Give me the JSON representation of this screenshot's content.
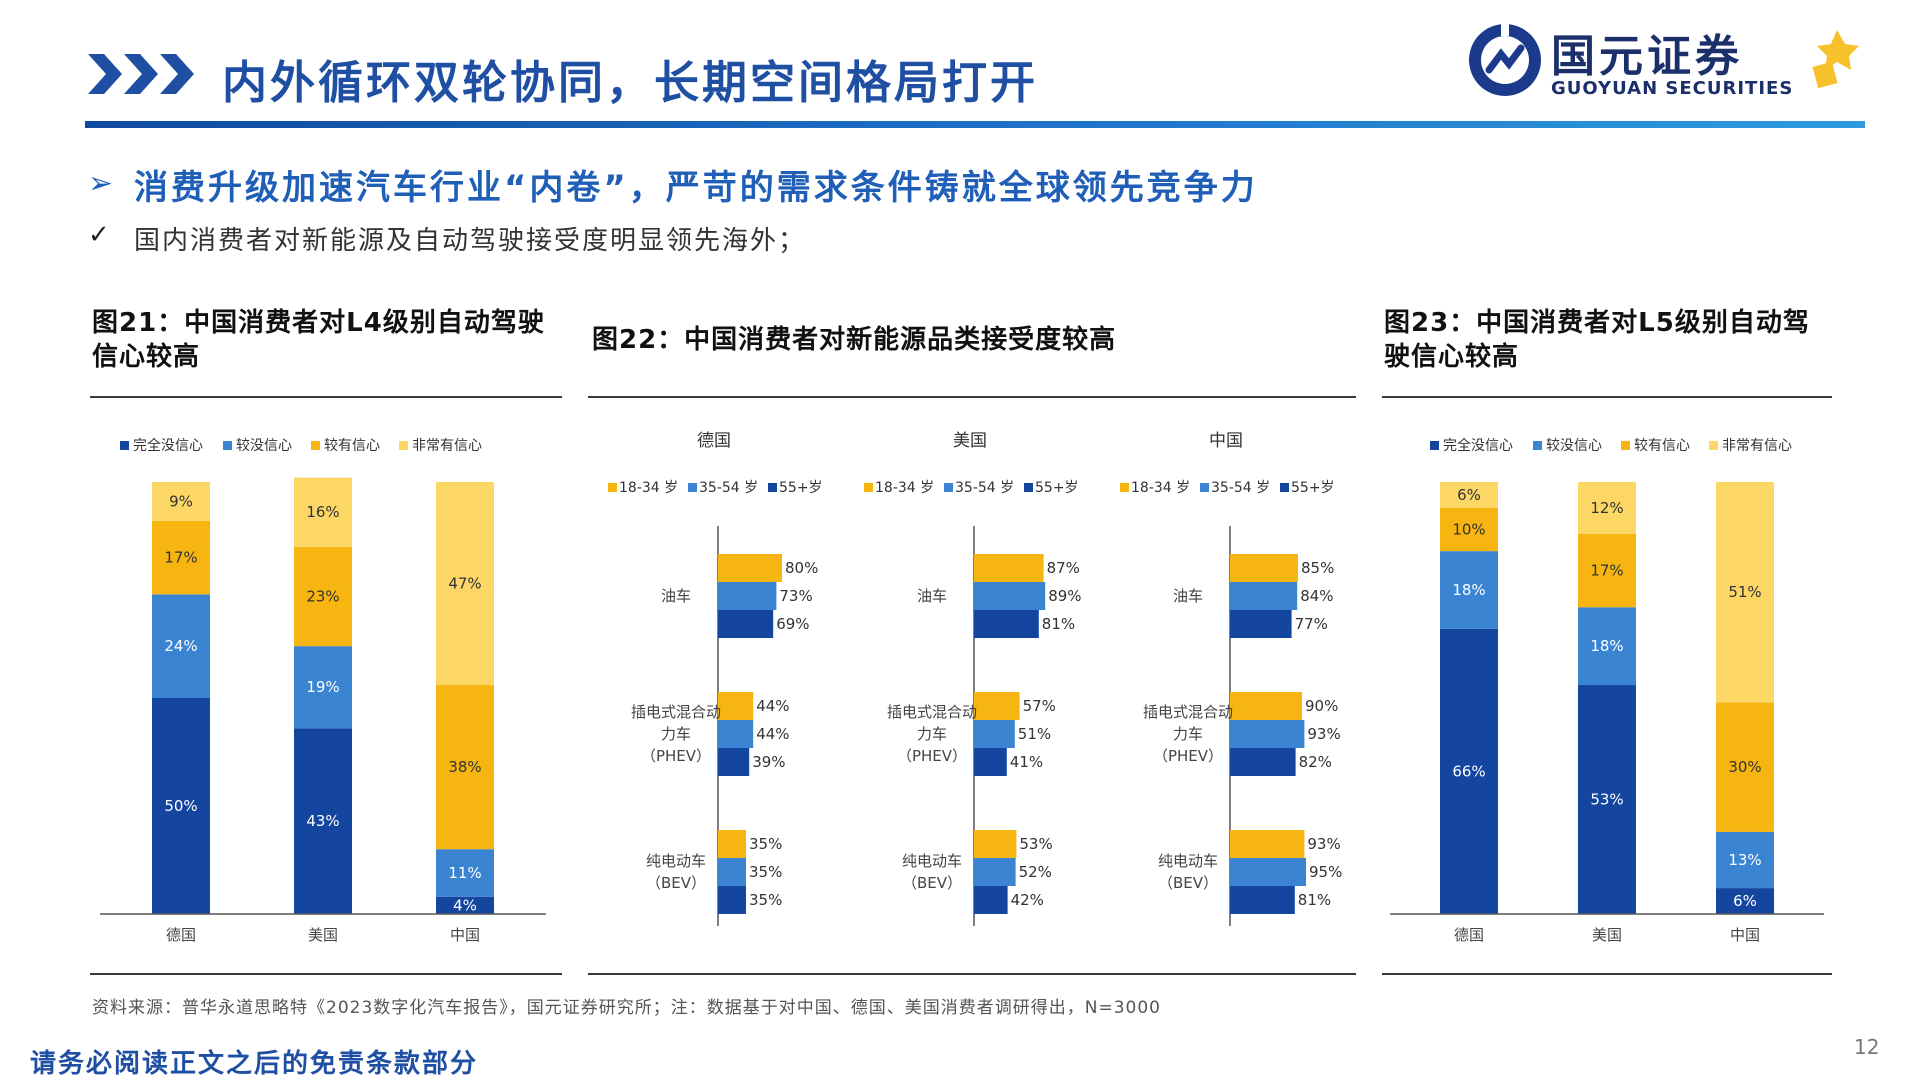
{
  "header": {
    "title": "内外循环双轮协同，长期空间格局打开",
    "logo_cn": "国元证券",
    "logo_en": "GUOYUAN SECURITIES",
    "brand_color": "#1f4fa3"
  },
  "subhead": {
    "marker": "➢",
    "text": "消费升级加速汽车行业“内卷”，严苛的需求条件铸就全球领先竞争力"
  },
  "bullet": {
    "marker": "✓",
    "text": "国内消费者对新能源及自动驾驶接受度明显领先海外；"
  },
  "figures": {
    "fig21_title_l1": "图21：中国消费者对L4级别自动驾驶",
    "fig21_title_l2": "信心较高",
    "fig22_title": "图22：中国消费者对新能源品类接受度较高",
    "fig23_title_l1": "图23：中国消费者对L5级别自动驾",
    "fig23_title_l2": "驶信心较高"
  },
  "source": "资料来源：普华永道思略特《2023数字化汽车报告》，国元证券研究所；注：数据基于对中国、德国、美国消费者调研得出，N=3000",
  "disclaimer": "请务必阅读正文之后的免责条款部分",
  "page_number": "12",
  "chart_data": [
    {
      "id": "fig21",
      "type": "bar",
      "stacked": true,
      "categories": [
        "德国",
        "美国",
        "中国"
      ],
      "ylim": [
        0,
        100
      ],
      "legend_placement": "top",
      "series": [
        {
          "name": "完全没信心",
          "color": "#1446a0",
          "values": [
            50,
            43,
            4
          ],
          "labels": [
            "50%",
            "43%",
            "4%"
          ]
        },
        {
          "name": "较没信心",
          "color": "#3a84d2",
          "values": [
            24,
            19,
            11
          ],
          "labels": [
            "24%",
            "19%",
            "11%"
          ]
        },
        {
          "name": "较有信心",
          "color": "#f6b511",
          "values": [
            17,
            23,
            38
          ],
          "labels": [
            "17%",
            "23%",
            "38%"
          ]
        },
        {
          "name": "非常有信心",
          "color": "#fdd766",
          "values": [
            9,
            16,
            47
          ],
          "labels": [
            "9%",
            "16%",
            "47%"
          ]
        }
      ]
    },
    {
      "id": "fig22",
      "type": "bar",
      "orientation": "horizontal",
      "panels": [
        {
          "country": "德国",
          "categories": [
            "油车",
            "插电式混合动力车（PHEV）",
            "纯电动车（BEV）"
          ],
          "category_lines": [
            [
              "油车"
            ],
            [
              "插电式混合动",
              "力车",
              "（PHEV）"
            ],
            [
              "纯电动车",
              "（BEV）"
            ]
          ],
          "series": [
            {
              "name": "18-34 岁",
              "color": "#f6b511",
              "values": [
                80,
                44,
                35
              ],
              "labels": [
                "80%",
                "44%",
                "35%"
              ]
            },
            {
              "name": "35-54 岁",
              "color": "#3a84d2",
              "values": [
                73,
                44,
                35
              ],
              "labels": [
                "73%",
                "44%",
                "35%"
              ]
            },
            {
              "name": "55+岁",
              "color": "#1446a0",
              "values": [
                69,
                39,
                35
              ],
              "labels": [
                "69%",
                "39%",
                "35%"
              ]
            }
          ]
        },
        {
          "country": "美国",
          "categories": [
            "油车",
            "插电式混合动力车（PHEV）",
            "纯电动车（BEV）"
          ],
          "category_lines": [
            [
              "油车"
            ],
            [
              "插电式混合动",
              "力车",
              "（PHEV）"
            ],
            [
              "纯电动车",
              "（BEV）"
            ]
          ],
          "series": [
            {
              "name": "18-34 岁",
              "color": "#f6b511",
              "values": [
                87,
                57,
                53
              ],
              "labels": [
                "87%",
                "57%",
                "53%"
              ]
            },
            {
              "name": "35-54 岁",
              "color": "#3a84d2",
              "values": [
                89,
                51,
                52
              ],
              "labels": [
                "89%",
                "51%",
                "52%"
              ]
            },
            {
              "name": "55+岁",
              "color": "#1446a0",
              "values": [
                81,
                41,
                42
              ],
              "labels": [
                "81%",
                "41%",
                "42%"
              ]
            }
          ]
        },
        {
          "country": "中国",
          "categories": [
            "油车",
            "插电式混合动力车（PHEV）",
            "纯电动车（BEV）"
          ],
          "category_lines": [
            [
              "油车"
            ],
            [
              "插电式混合动",
              "力车",
              "（PHEV）"
            ],
            [
              "纯电动车",
              "（BEV）"
            ]
          ],
          "series": [
            {
              "name": "18-34 岁",
              "color": "#f6b511",
              "values": [
                85,
                90,
                93
              ],
              "labels": [
                "85%",
                "90%",
                "93%"
              ]
            },
            {
              "name": "35-54 岁",
              "color": "#3a84d2",
              "values": [
                84,
                93,
                95
              ],
              "labels": [
                "84%",
                "93%",
                "95%"
              ]
            },
            {
              "name": "55+岁",
              "color": "#1446a0",
              "values": [
                77,
                82,
                81
              ],
              "labels": [
                "77%",
                "82%",
                "81%"
              ]
            }
          ]
        }
      ]
    },
    {
      "id": "fig23",
      "type": "bar",
      "stacked": true,
      "categories": [
        "德国",
        "美国",
        "中国"
      ],
      "ylim": [
        0,
        100
      ],
      "legend_placement": "top",
      "series": [
        {
          "name": "完全没信心",
          "color": "#1446a0",
          "values": [
            66,
            53,
            6
          ],
          "labels": [
            "66%",
            "53%",
            "6%"
          ]
        },
        {
          "name": "较没信心",
          "color": "#3a84d2",
          "values": [
            18,
            18,
            13
          ],
          "labels": [
            "18%",
            "18%",
            "13%"
          ]
        },
        {
          "name": "较有信心",
          "color": "#f6b511",
          "values": [
            10,
            17,
            30
          ],
          "labels": [
            "10%",
            "17%",
            "30%"
          ]
        },
        {
          "name": "非常有信心",
          "color": "#fdd766",
          "values": [
            6,
            12,
            51
          ],
          "labels": [
            "6%",
            "12%",
            "51%"
          ]
        }
      ]
    }
  ]
}
